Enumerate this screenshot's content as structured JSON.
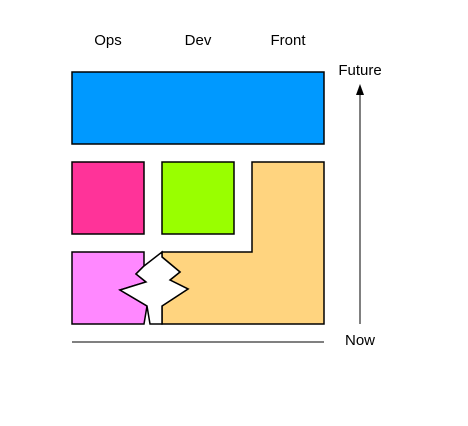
{
  "columns": {
    "ops": "Ops",
    "dev": "Dev",
    "front": "Front"
  },
  "timeline": {
    "future": "Future",
    "now": "Now"
  },
  "blocks": {
    "top_bar": {
      "color": "#0099ff"
    },
    "ops_middle": {
      "color": "#ff3399"
    },
    "dev_middle": {
      "color": "#99ff00"
    },
    "ops_bottom": {
      "color": "#ff88ff"
    },
    "front_l_shape": {
      "color": "#ffd47f"
    }
  },
  "stroke_color": "#000000"
}
